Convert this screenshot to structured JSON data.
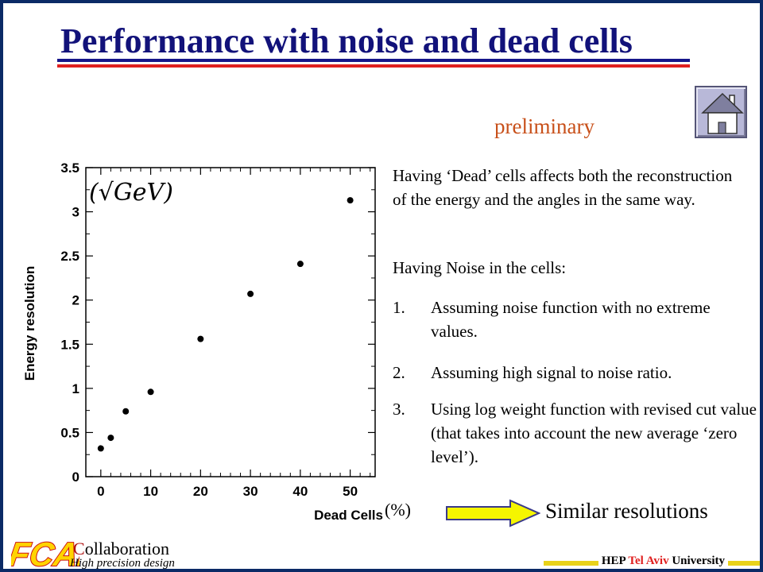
{
  "title": "Performance with noise and dead cells",
  "preliminary": "preliminary",
  "home_icon": "house-icon",
  "paragraphs": [
    "Having ‘Dead’ cells affects both the reconstruction of the energy and the angles in the same way.",
    "Having Noise in the cells:"
  ],
  "list": [
    {
      "num": "1.",
      "text": "Assuming noise function with no extreme values."
    },
    {
      "num": "2.",
      "text": "Assuming high signal to noise ratio."
    },
    {
      "num": "3.",
      "text": "Using log weight function with revised cut value (that takes into account the new average ‘zero level’)."
    }
  ],
  "arrow_icon": "right-arrow-icon",
  "conclusion": "Similar resolutions",
  "percent_label": "(%)",
  "footer": {
    "logo_text": "FCAL",
    "collab_first": "C",
    "collab_rest": "ollaboration",
    "subtitle": "High precision design",
    "univ_pre": "HEP ",
    "univ_accent": "Tel Aviv",
    "univ_post": " University"
  },
  "colors": {
    "title": "#12127a",
    "preliminary": "#c8501a",
    "arrow": "#f5f500",
    "rule_red": "#e02020",
    "frame": "#0b2a66"
  },
  "chart_data": {
    "type": "scatter",
    "xlabel": "Dead Cells",
    "ylabel": "Energy resolution",
    "unit_annotation": "(√GeV)",
    "xlim": [
      -3,
      55
    ],
    "ylim": [
      0,
      3.5
    ],
    "x_ticks": [
      0,
      10,
      20,
      30,
      40,
      50
    ],
    "y_ticks": [
      0,
      0.5,
      1,
      1.5,
      2,
      2.5,
      3,
      3.5
    ],
    "x": [
      0,
      2,
      5,
      10,
      20,
      30,
      40,
      50
    ],
    "y": [
      0.32,
      0.44,
      0.74,
      0.96,
      1.56,
      2.07,
      2.41,
      3.13
    ],
    "grid": false
  }
}
